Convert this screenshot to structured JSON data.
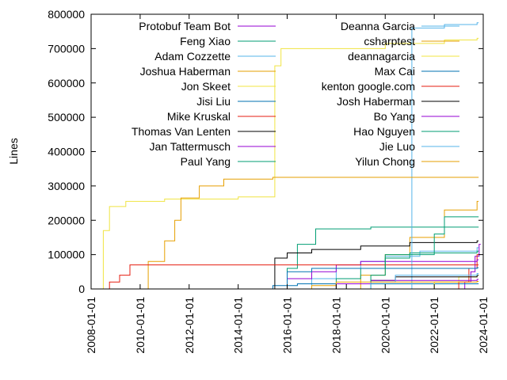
{
  "chart_data": {
    "type": "line",
    "ylabel": "Lines",
    "xlabel": "",
    "xlim": [
      "2008-01-01",
      "2024-01-01"
    ],
    "ylim": [
      0,
      800000
    ],
    "yticks": [
      0,
      100000,
      200000,
      300000,
      400000,
      500000,
      600000,
      700000,
      800000
    ],
    "xticks": [
      "2008-01-01",
      "2010-01-01",
      "2012-01-01",
      "2014-01-01",
      "2016-01-01",
      "2018-01-01",
      "2020-01-01",
      "2022-01-01",
      "2024-01-01"
    ],
    "grid": false,
    "legend_position": "top",
    "series": [
      {
        "name": "Protobuf Team Bot",
        "color": "#9400d3",
        "points": [
          [
            "2022-10-01",
            0
          ],
          [
            "2023-04-01",
            20000
          ],
          [
            "2023-07-01",
            50000
          ],
          [
            "2023-09-01",
            95000
          ],
          [
            "2023-11-01",
            130000
          ]
        ]
      },
      {
        "name": "Feng Xiao",
        "color": "#009e73",
        "points": [
          [
            "2015-09-01",
            0
          ],
          [
            "2016-01-01",
            60000
          ],
          [
            "2016-06-01",
            130000
          ],
          [
            "2017-03-01",
            175000
          ],
          [
            "2019-06-01",
            180000
          ],
          [
            "2023-10-01",
            180000
          ]
        ]
      },
      {
        "name": "Adam Cozzette",
        "color": "#56b4e9",
        "points": [
          [
            "2016-01-01",
            0
          ],
          [
            "2017-01-01",
            30000
          ],
          [
            "2018-01-01",
            60000
          ],
          [
            "2019-01-01",
            80000
          ],
          [
            "2020-01-01",
            95000
          ],
          [
            "2021-06-01",
            110000
          ],
          [
            "2023-10-01",
            120000
          ]
        ]
      },
      {
        "name": "Joshua Haberman",
        "color": "#e69f00",
        "points": [
          [
            "2017-06-01",
            0
          ],
          [
            "2019-01-01",
            40000
          ],
          [
            "2020-01-01",
            100000
          ],
          [
            "2021-01-01",
            150000
          ],
          [
            "2022-06-01",
            230000
          ],
          [
            "2023-10-01",
            255000
          ]
        ]
      },
      {
        "name": "Jon Skeet",
        "color": "#f0e442",
        "points": [
          [
            "2008-06-01",
            0
          ],
          [
            "2008-07-01",
            170000
          ],
          [
            "2008-10-01",
            240000
          ],
          [
            "2009-06-01",
            255000
          ],
          [
            "2011-01-01",
            262000
          ],
          [
            "2014-01-01",
            268000
          ],
          [
            "2015-06-01",
            268000
          ],
          [
            "2015-07-01",
            650000
          ],
          [
            "2015-10-01",
            700000
          ],
          [
            "2020-01-01",
            715000
          ],
          [
            "2022-06-01",
            725000
          ],
          [
            "2023-10-01",
            730000
          ]
        ]
      },
      {
        "name": "Jisi Liu",
        "color": "#0072b2",
        "points": [
          [
            "2014-10-01",
            0
          ],
          [
            "2015-06-01",
            10000
          ],
          [
            "2016-06-01",
            15000
          ],
          [
            "2023-10-01",
            15000
          ]
        ]
      },
      {
        "name": "Mike Kruskal",
        "color": "#e51e10",
        "points": [
          [
            "2022-06-01",
            0
          ],
          [
            "2023-01-01",
            20000
          ],
          [
            "2023-06-01",
            60000
          ],
          [
            "2023-10-01",
            100000
          ]
        ]
      },
      {
        "name": "Thomas Van Lenten",
        "color": "#000000",
        "points": [
          [
            "2015-06-01",
            0
          ],
          [
            "2015-07-01",
            90000
          ],
          [
            "2016-01-01",
            105000
          ],
          [
            "2017-01-01",
            115000
          ],
          [
            "2019-01-01",
            125000
          ],
          [
            "2021-01-01",
            135000
          ],
          [
            "2023-10-01",
            140000
          ]
        ]
      },
      {
        "name": "Jan Tattermusch",
        "color": "#9400d3",
        "points": [
          [
            "2015-06-01",
            0
          ],
          [
            "2016-01-01",
            30000
          ],
          [
            "2017-01-01",
            50000
          ],
          [
            "2018-01-01",
            70000
          ],
          [
            "2019-01-01",
            80000
          ],
          [
            "2023-10-01",
            85000
          ]
        ]
      },
      {
        "name": "Paul Yang",
        "color": "#009e73",
        "points": [
          [
            "2017-06-01",
            0
          ],
          [
            "2018-01-01",
            30000
          ],
          [
            "2019-01-01",
            60000
          ],
          [
            "2020-01-01",
            90000
          ],
          [
            "2021-01-01",
            105000
          ],
          [
            "2023-10-01",
            110000
          ]
        ]
      },
      {
        "name": "Deanna Garcia",
        "color": "#56b4e9",
        "points": [
          [
            "2021-01-01",
            0
          ],
          [
            "2021-02-01",
            760000
          ],
          [
            "2022-06-01",
            770000
          ],
          [
            "2023-10-01",
            775000
          ]
        ]
      },
      {
        "name": "csharptest",
        "color": "#e69f00",
        "points": [
          [
            "2010-03-01",
            0
          ],
          [
            "2010-05-01",
            80000
          ],
          [
            "2011-01-01",
            140000
          ],
          [
            "2011-06-01",
            200000
          ],
          [
            "2011-09-01",
            265000
          ],
          [
            "2012-06-01",
            300000
          ],
          [
            "2013-06-01",
            320000
          ],
          [
            "2015-06-01",
            325000
          ],
          [
            "2023-10-01",
            325000
          ]
        ]
      },
      {
        "name": "deannagarcia",
        "color": "#f0e442",
        "points": [
          [
            "2021-06-01",
            0
          ],
          [
            "2022-01-01",
            20000
          ],
          [
            "2023-01-01",
            35000
          ],
          [
            "2023-10-01",
            40000
          ]
        ]
      },
      {
        "name": "Max Cai",
        "color": "#0072b2",
        "points": [
          [
            "2015-06-01",
            0
          ],
          [
            "2016-01-01",
            50000
          ],
          [
            "2017-01-01",
            60000
          ],
          [
            "2023-10-01",
            62000
          ]
        ]
      },
      {
        "name": "kenton google.com",
        "color": "#e51e10",
        "points": [
          [
            "2008-07-01",
            0
          ],
          [
            "2008-10-01",
            20000
          ],
          [
            "2009-03-01",
            40000
          ],
          [
            "2009-08-01",
            70000
          ],
          [
            "2023-10-01",
            70000
          ]
        ]
      },
      {
        "name": "Josh Haberman",
        "color": "#000000",
        "points": [
          [
            "2017-06-01",
            0
          ],
          [
            "2018-06-01",
            15000
          ],
          [
            "2019-06-01",
            25000
          ],
          [
            "2020-06-01",
            35000
          ],
          [
            "2023-10-01",
            40000
          ]
        ]
      },
      {
        "name": "Bo Yang",
        "color": "#9400d3",
        "points": [
          [
            "2017-06-01",
            0
          ],
          [
            "2018-01-01",
            15000
          ],
          [
            "2019-06-01",
            25000
          ],
          [
            "2023-10-01",
            28000
          ]
        ]
      },
      {
        "name": "Hao Nguyen",
        "color": "#009e73",
        "points": [
          [
            "2019-01-01",
            0
          ],
          [
            "2019-06-01",
            40000
          ],
          [
            "2020-01-01",
            100000
          ],
          [
            "2022-01-01",
            160000
          ],
          [
            "2022-06-01",
            210000
          ],
          [
            "2023-10-01",
            210000
          ]
        ]
      },
      {
        "name": "Jie Luo",
        "color": "#56b4e9",
        "points": [
          [
            "2018-06-01",
            0
          ],
          [
            "2019-06-01",
            20000
          ],
          [
            "2020-06-01",
            40000
          ],
          [
            "2023-10-01",
            45000
          ]
        ]
      },
      {
        "name": "Yilun Chong",
        "color": "#e69f00",
        "points": [
          [
            "2016-01-01",
            0
          ],
          [
            "2017-01-01",
            10000
          ],
          [
            "2018-01-01",
            20000
          ],
          [
            "2023-10-01",
            22000
          ]
        ]
      }
    ]
  }
}
